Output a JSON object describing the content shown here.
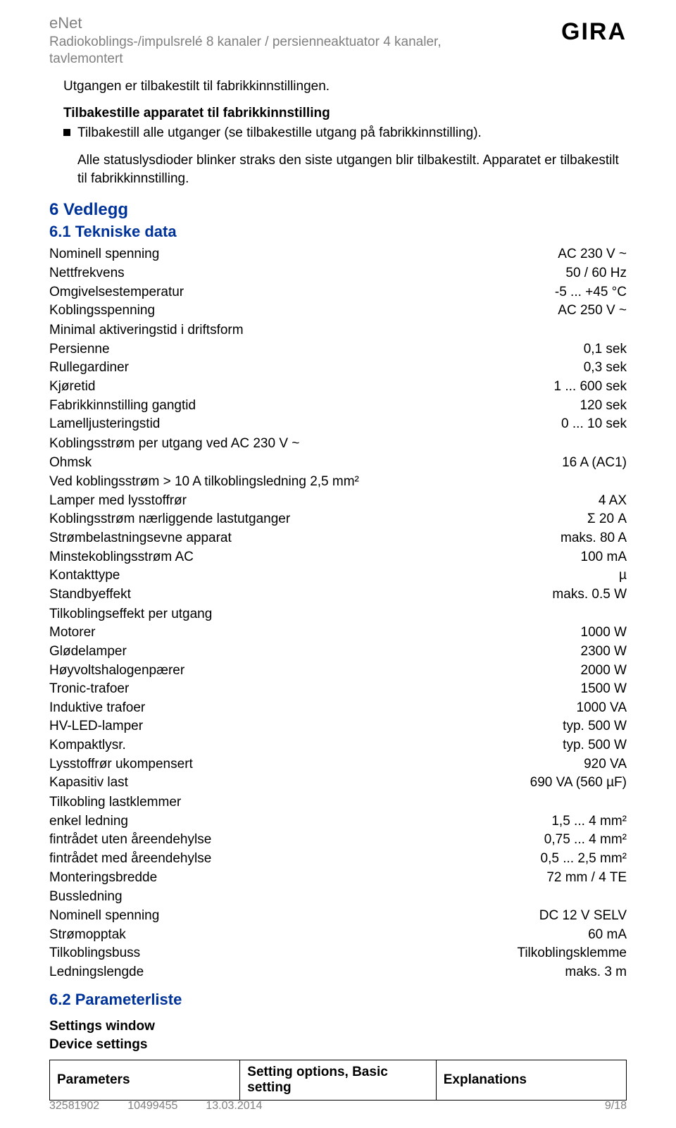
{
  "header": {
    "title": "eNet",
    "subtitle": "Radiokoblings-/impulsrelé 8 kanaler / persienneaktuator 4 kanaler, tavlemontert",
    "logo": "GIRA"
  },
  "intro": {
    "line": "Utgangen er tilbakestilt til fabrikkinnstillingen.",
    "section_title": "Tilbakestille apparatet til fabrikkinnstilling",
    "bullet": "Tilbakestill alle utganger (se tilbakestille utgang på fabrikkinnstilling).",
    "after": "Alle statuslysdioder blinker straks den siste utgangen blir tilbakestilt. Apparatet er tilbakestilt til fabrikkinnstilling."
  },
  "h2_vedlegg": "6 Vedlegg",
  "h3_tekniske": "6.1 Tekniske data",
  "specs": [
    {
      "label": "Nominell spenning",
      "value": "AC 230 V ~"
    },
    {
      "label": "Nettfrekvens",
      "value": "50 / 60 Hz"
    },
    {
      "label": "Omgivelsestemperatur",
      "value": "-5 ... +45 °C"
    },
    {
      "label": "Koblingsspenning",
      "value": "AC 250 V ~"
    },
    {
      "label": "Minimal aktiveringstid i driftsform",
      "value": ""
    },
    {
      "label": "Persienne",
      "value": "0,1 sek"
    },
    {
      "label": "Rullegardiner",
      "value": "0,3 sek"
    },
    {
      "label": "Kjøretid",
      "value": "1 ... 600 sek"
    },
    {
      "label": "Fabrikkinnstilling gangtid",
      "value": "120 sek"
    },
    {
      "label": "Lamelljusteringstid",
      "value": "0 ... 10 sek"
    },
    {
      "label": "Koblingsstrøm per utgang ved AC 230 V ~",
      "value": ""
    },
    {
      "label": "Ohmsk",
      "value": "16 A (AC1)"
    },
    {
      "label": "Ved koblingsstrøm > 10 A tilkoblingsledning 2,5 mm²",
      "value": ""
    },
    {
      "label": "Lamper med lysstoffrør",
      "value": "4 AX"
    },
    {
      "label": "Koblingsstrøm nærliggende lastutganger",
      "value": "Σ 20 A"
    },
    {
      "label": "Strømbelastningsevne apparat",
      "value": "maks. 80 A"
    },
    {
      "label": "Minstekoblingsstrøm AC",
      "value": "100 mA"
    },
    {
      "label": "Kontakttype",
      "value": "µ"
    },
    {
      "label": "Standbyeffekt",
      "value": "maks. 0.5 W"
    },
    {
      "label": "Tilkoblingseffekt per utgang",
      "value": ""
    },
    {
      "label": "Motorer",
      "value": "1000 W"
    },
    {
      "label": "Glødelamper",
      "value": "2300 W"
    },
    {
      "label": "Høyvoltshalogenpærer",
      "value": "2000 W"
    },
    {
      "label": "Tronic-trafoer",
      "value": "1500 W"
    },
    {
      "label": "Induktive trafoer",
      "value": "1000 VA"
    },
    {
      "label": "HV-LED-lamper",
      "value": "typ. 500 W"
    },
    {
      "label": "Kompaktlysr.",
      "value": "typ. 500 W"
    },
    {
      "label": "Lysstoffrør ukompensert",
      "value": "920 VA"
    },
    {
      "label": "Kapasitiv last",
      "value": "690 VA (560 µF)"
    },
    {
      "label": "Tilkobling lastklemmer",
      "value": ""
    },
    {
      "label": "enkel ledning",
      "value": "1,5 ... 4 mm²"
    },
    {
      "label": "fintrådet uten åreendehylse",
      "value": "0,75 ... 4 mm²"
    },
    {
      "label": "fintrådet med åreendehylse",
      "value": "0,5 ... 2,5 mm²"
    },
    {
      "label": "Monteringsbredde",
      "value": "72 mm / 4 TE"
    },
    {
      "label": "Bussledning",
      "value": ""
    },
    {
      "label": "Nominell spenning",
      "value": "DC 12 V SELV"
    },
    {
      "label": "Strømopptak",
      "value": "60 mA"
    },
    {
      "label": "Tilkoblingsbuss",
      "value": "Tilkoblingsklemme"
    },
    {
      "label": "Ledningslengde",
      "value": "maks. 3 m"
    }
  ],
  "h3_params": "6.2 Parameterliste",
  "params_sub1": "Settings window",
  "params_sub2": "Device settings",
  "table": {
    "col1": "Parameters",
    "col2": "Setting options, Basic setting",
    "col3": "Explanations"
  },
  "footer": {
    "id1": "32581902",
    "id2": "10499455",
    "date": "13.03.2014",
    "page": "9/18"
  },
  "colors": {
    "text_gray": "#808080",
    "heading_blue": "#003399",
    "background": "#ffffff",
    "black": "#000000"
  }
}
